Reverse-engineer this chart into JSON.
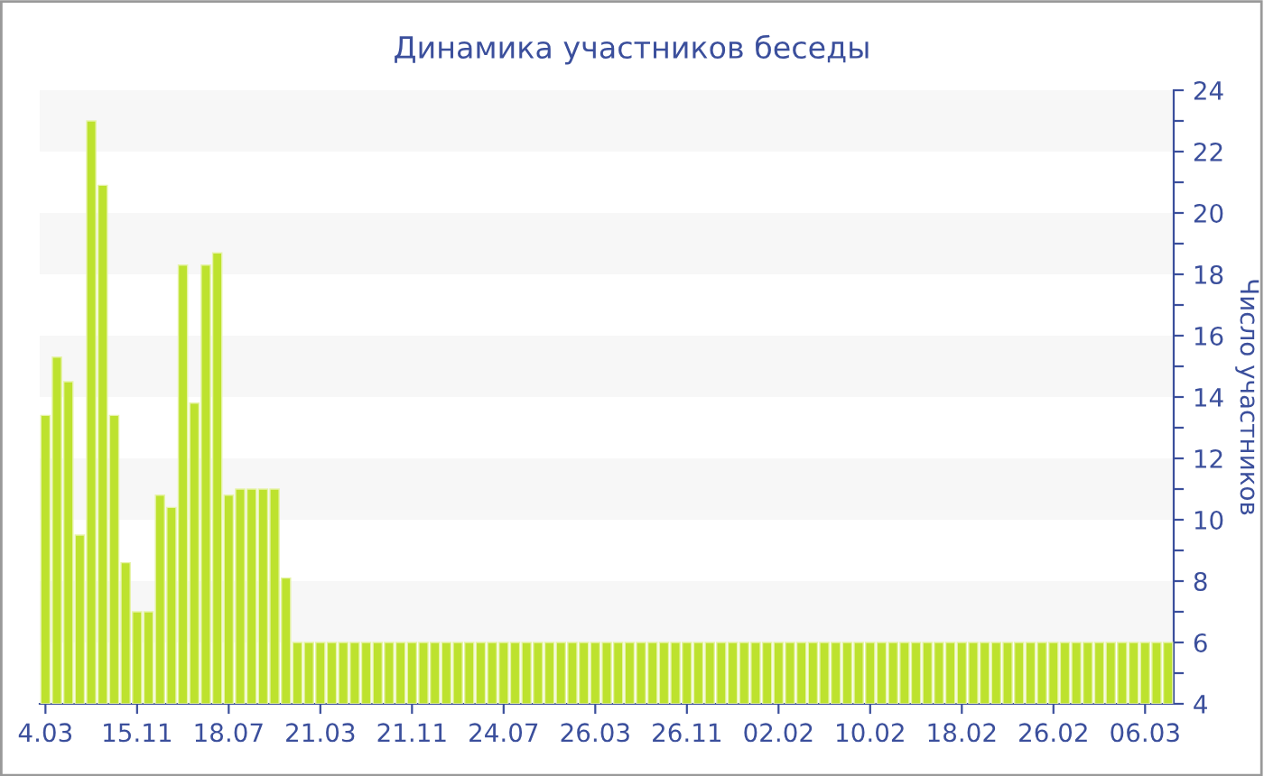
{
  "chart_data": {
    "type": "bar",
    "title": "Динамика участников беседы",
    "ylabel": "Число участников",
    "categories": [
      "4.03",
      null,
      null,
      null,
      null,
      null,
      null,
      null,
      "15.11",
      null,
      null,
      null,
      null,
      null,
      null,
      null,
      "18.07",
      null,
      null,
      null,
      null,
      null,
      null,
      null,
      "21.03",
      null,
      null,
      null,
      null,
      null,
      null,
      null,
      "21.11",
      null,
      null,
      null,
      null,
      null,
      null,
      null,
      "24.07",
      null,
      null,
      null,
      null,
      null,
      null,
      null,
      "26.03",
      null,
      null,
      null,
      null,
      null,
      null,
      null,
      "26.11",
      null,
      null,
      null,
      null,
      null,
      null,
      null,
      "02.02",
      null,
      null,
      null,
      null,
      null,
      null,
      null,
      "10.02",
      null,
      null,
      null,
      null,
      null,
      null,
      null,
      "18.02",
      null,
      null,
      null,
      null,
      null,
      null,
      null,
      "26.02",
      null,
      null,
      null,
      null,
      null,
      null,
      null,
      "06.03",
      null,
      null
    ],
    "values": [
      13.4,
      15.3,
      14.5,
      9.5,
      23,
      20.9,
      13.4,
      8.6,
      7,
      7,
      10.8,
      10.4,
      18.3,
      13.8,
      18.3,
      18.7,
      10.8,
      11,
      11,
      11,
      11,
      8.1,
      6,
      6,
      6,
      6,
      6,
      6,
      6,
      6,
      6,
      6,
      6,
      6,
      6,
      6,
      6,
      6,
      6,
      6,
      6,
      6,
      6,
      6,
      6,
      6,
      6,
      6,
      6,
      6,
      6,
      6,
      6,
      6,
      6,
      6,
      6,
      6,
      6,
      6,
      6,
      6,
      6,
      6,
      6,
      6,
      6,
      6,
      6,
      6,
      6,
      6,
      6,
      6,
      6,
      6,
      6,
      6,
      6,
      6,
      6,
      6,
      6,
      6,
      6,
      6,
      6,
      6,
      6,
      6,
      6,
      6,
      6,
      6,
      6,
      6,
      6,
      6,
      6
    ],
    "color": "#bde22e",
    "ylim": [
      4,
      24
    ],
    "yticks": [
      4,
      {
        "value": 5,
        "label": null
      },
      6,
      {
        "value": 7,
        "label": null
      },
      8,
      {
        "value": 9,
        "label": null
      },
      10,
      {
        "value": 11,
        "label": null
      },
      12,
      {
        "value": 13,
        "label": null
      },
      14,
      {
        "value": 15,
        "label": null
      },
      16,
      {
        "value": 17,
        "label": null
      },
      18,
      {
        "value": 19,
        "label": null
      },
      20,
      {
        "value": 21,
        "label": null
      },
      22,
      {
        "value": 23,
        "label": null
      },
      24
    ],
    "bands": [
      {
        "axis": "y",
        "from": 6,
        "to": 8,
        "color": "#f7f7f7"
      },
      {
        "axis": "y",
        "from": 10,
        "to": 12,
        "color": "#f7f7f7"
      },
      {
        "axis": "y",
        "from": 14,
        "to": 16,
        "color": "#f7f7f7"
      },
      {
        "axis": "y",
        "from": 18,
        "to": 20,
        "color": "#f7f7f7"
      },
      {
        "axis": "y",
        "from": 22,
        "to": 24,
        "color": "#f7f7f7"
      }
    ]
  }
}
